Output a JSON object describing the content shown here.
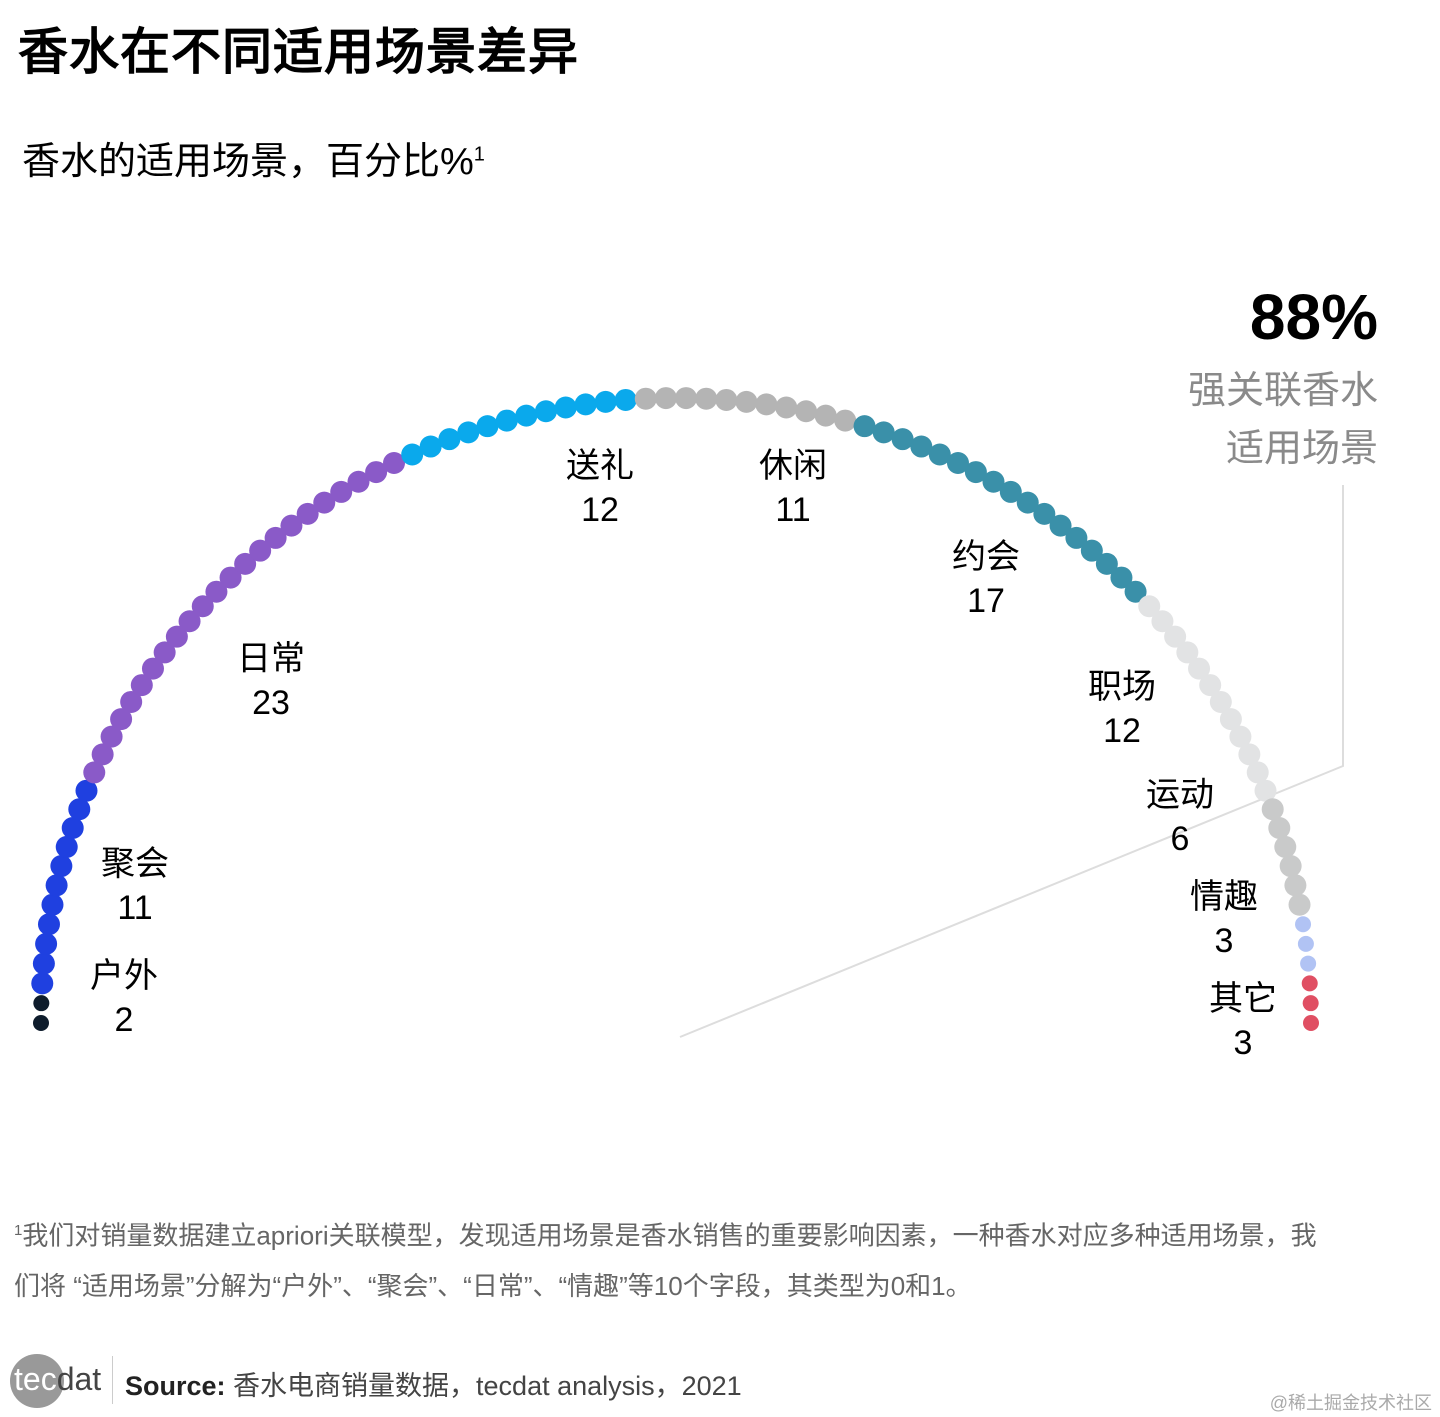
{
  "title": "香水在不同适用场景差异",
  "subtitle": "香水的适用场景，百分比%",
  "subtitle_footnote_mark": "1",
  "chart_data": {
    "type": "dot-arc",
    "unit": "%",
    "categories": [
      "户外",
      "聚会",
      "日常",
      "送礼",
      "休闲",
      "约会",
      "职场",
      "运动",
      "情趣",
      "其它"
    ],
    "values": [
      2,
      11,
      23,
      12,
      11,
      17,
      12,
      6,
      3,
      3
    ],
    "colors": [
      "#0e1c2c",
      "#1f40e0",
      "#8a5ac8",
      "#0aa9ec",
      "#b4b4b4",
      "#3a90a9",
      "#e2e3e4",
      "#c9caca",
      "#b1c3f4",
      "#e04f63"
    ],
    "callout": {
      "value": "88%",
      "label_line1": "强关联香水",
      "label_line2": "适用场景"
    }
  },
  "footnote": {
    "mark": "1",
    "text": "我们对销量数据建立apriori关联模型，发现适用场景是香水销售的重要影响因素，一种香水对应多种适用场景，我们将 “适用场景”分解为“户外”、“聚会”、“日常”、“情趣”等10个字段，其类型为0和1。"
  },
  "footer": {
    "logo_text_a": "tec",
    "logo_text_b": "dat",
    "source_label": "Source:",
    "source_text": " 香水电商销量数据，tecdat analysis，2021",
    "watermark": "@稀土掘金技术社区"
  }
}
